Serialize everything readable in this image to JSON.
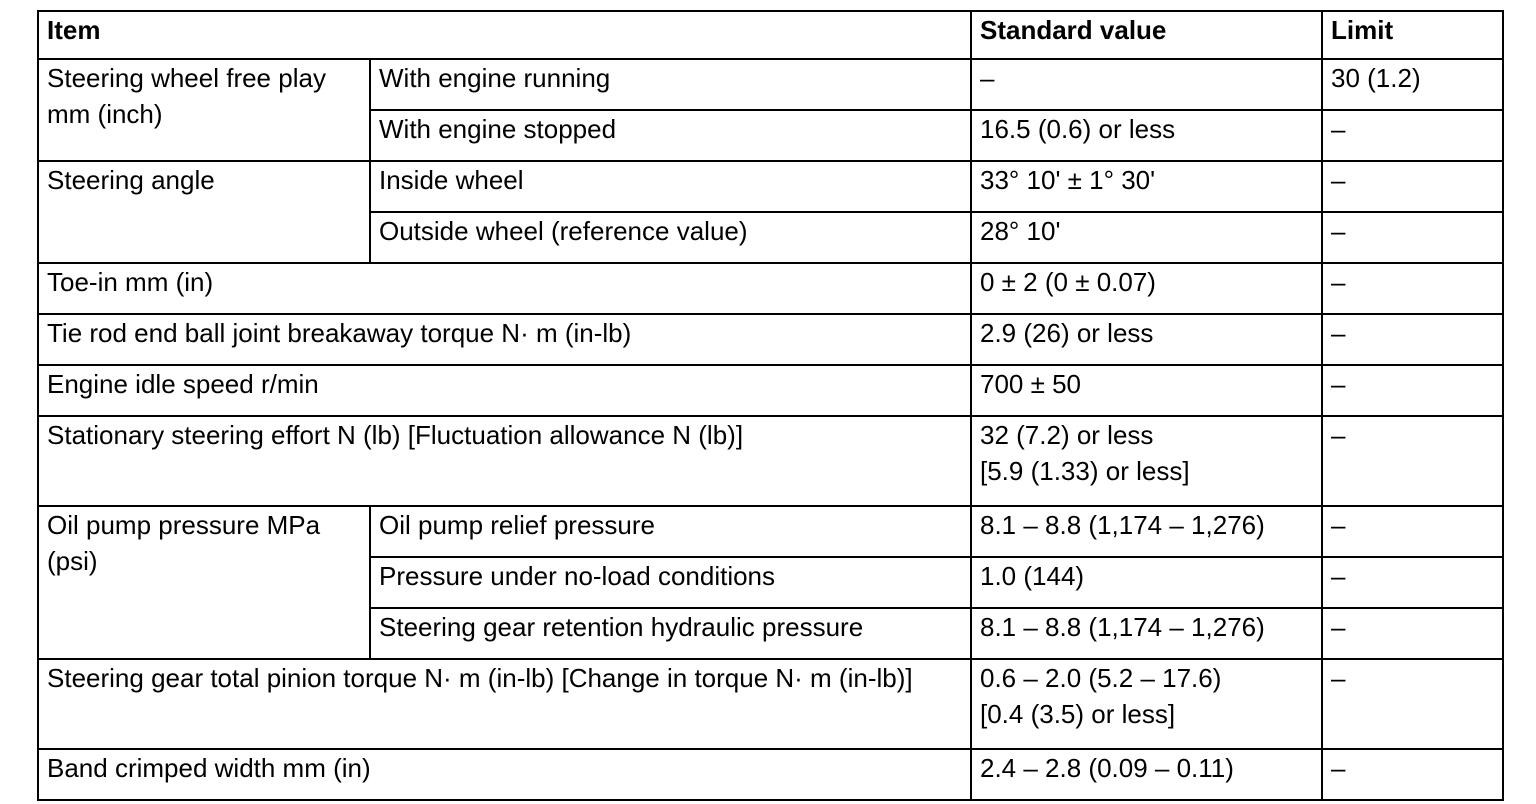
{
  "table": {
    "headers": {
      "item": "Item",
      "standard_value": "Standard value",
      "limit": "Limit"
    },
    "rows": [
      {
        "group": "Steering wheel free play mm (inch)",
        "sub": "With engine running",
        "standard": "–",
        "limit": "30 (1.2)"
      },
      {
        "sub": "With engine stopped",
        "standard": "16.5 (0.6) or less",
        "limit": "–"
      },
      {
        "group": "Steering angle",
        "sub": "Inside wheel",
        "standard": "33° 10' ± 1° 30'",
        "limit": "–"
      },
      {
        "sub": "Outside wheel (reference value)",
        "standard": "28° 10'",
        "limit": "–"
      },
      {
        "item": "Toe-in mm (in)",
        "standard": "0 ± 2 (0 ± 0.07)",
        "limit": "–"
      },
      {
        "item": "Tie rod end ball joint breakaway torque N· m (in-lb)",
        "standard": "2.9 (26) or less",
        "limit": "–"
      },
      {
        "item": "Engine idle speed r/min",
        "standard": "700 ± 50",
        "limit": "–"
      },
      {
        "item": "Stationary steering effort N (lb) [Fluctuation allowance N (lb)]",
        "standard_line1": "32 (7.2) or less",
        "standard_line2": "[5.9 (1.33) or less]",
        "limit": "–"
      },
      {
        "group": "Oil pump pressure MPa (psi)",
        "sub": "Oil pump relief pressure",
        "standard": "8.1 – 8.8 (1,174 – 1,276)",
        "limit": "–"
      },
      {
        "sub": "Pressure under no-load conditions",
        "standard": "1.0 (144)",
        "limit": "–"
      },
      {
        "sub": "Steering gear retention hydraulic pressure",
        "standard": "8.1 – 8.8 (1,174 – 1,276)",
        "limit": "–"
      },
      {
        "item": "Steering gear total pinion torque N· m (in-lb) [Change in torque N· m (in-lb)]",
        "standard_line1": "0.6 – 2.0 (5.2 – 17.6)",
        "standard_line2": "[0.4 (3.5) or less]",
        "limit": "–"
      },
      {
        "item": "Band crimped width mm (in)",
        "standard": "2.4 – 2.8 (0.09 – 0.11)",
        "limit": "–"
      }
    ]
  }
}
